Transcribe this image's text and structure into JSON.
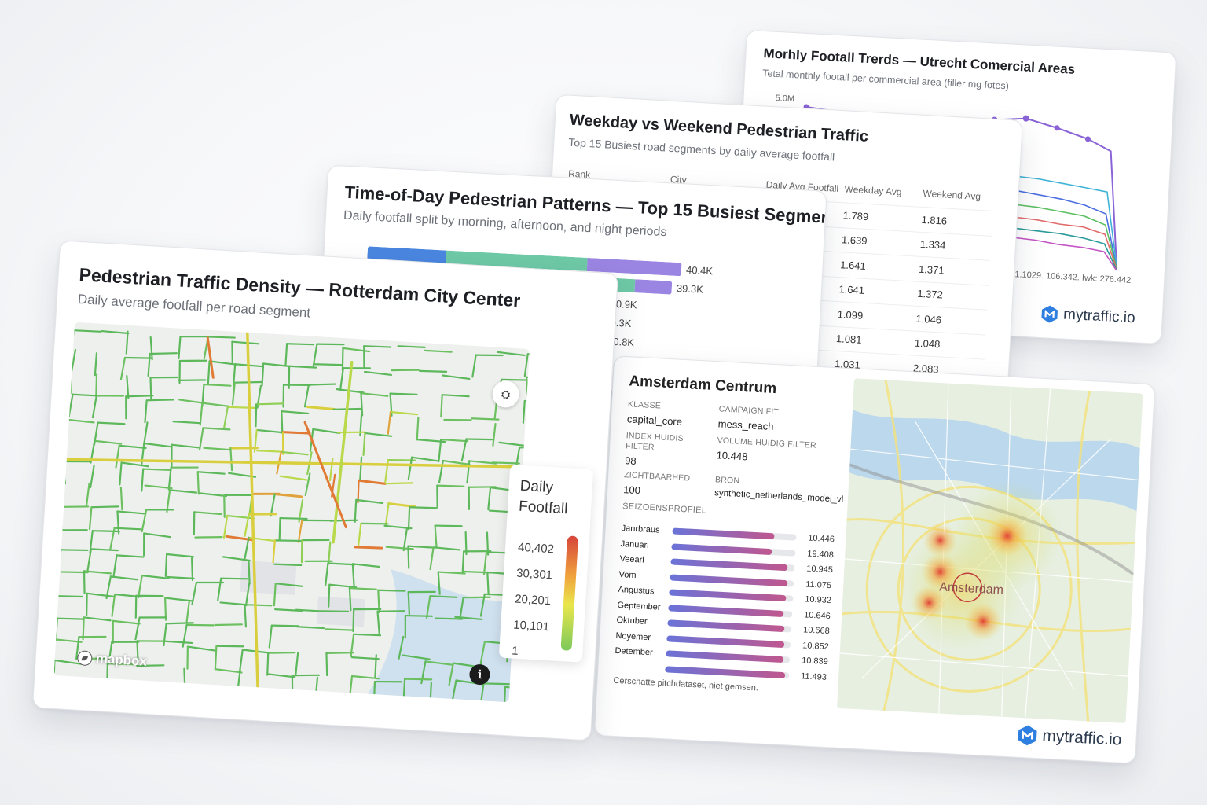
{
  "brand": {
    "name": "mytraffic.io",
    "accent": "#2f7fe0"
  },
  "trends": {
    "title": "Morhly Footall Trerds — Utrecht Comercial Areas",
    "subtitle": "Tetal monthly footall per commercial area (filler mg fotes)",
    "ytick": "5.0M",
    "footer": "21.1029. 106.342. Iwk: 276.442"
  },
  "weekday": {
    "title": "Weekday vs Weekend Pedestrian Traffic",
    "subtitle": "Top 15 Busiest road segments by daily average footfall",
    "headers": {
      "rank": "Rank",
      "city": "City",
      "daily": "Daily Avg Footfall",
      "weekday": "Weekday Avg",
      "weekend": "Weekend Avg"
    },
    "rows": [
      {
        "weekday": "1.789",
        "weekend": "1.816"
      },
      {
        "weekday": "1.639",
        "weekend": "1.334"
      },
      {
        "weekday": "1.641",
        "weekend": "1.371"
      },
      {
        "weekday": "1.641",
        "weekend": "1.372"
      },
      {
        "weekday": "1.099",
        "weekend": "1.046"
      },
      {
        "weekday": "1.081",
        "weekend": "1.048"
      },
      {
        "weekday": "1.031",
        "weekend": "2.083"
      }
    ]
  },
  "tod": {
    "title": "Time-of-Day Pedestrian Patterns — Top 15 Busiest Segments",
    "subtitle": "Daily footfall split by morning, afternoon, and night periods",
    "colors": {
      "morning": "#4a86e0",
      "afternoon": "#6ec9a6",
      "night": "#9a86e2"
    },
    "bars": [
      {
        "label": "40.4K",
        "total": 40.4,
        "m": 0.25,
        "a": 0.45,
        "n": 0.3
      },
      {
        "label": "39.3K",
        "total": 39.3,
        "m": 0.22,
        "a": 0.66,
        "n": 0.12
      },
      {
        "label": "30.9K",
        "total": 30.9,
        "m": 0.2,
        "a": 0.55,
        "n": 0.25
      },
      {
        "label": "30.3K",
        "total": 30.3,
        "m": 0.24,
        "a": 0.5,
        "n": 0.26
      },
      {
        "label": "30.8K",
        "total": 30.8,
        "m": 0.24,
        "a": 0.46,
        "n": 0.3
      }
    ]
  },
  "rotterdam": {
    "title": "Pedestrian Traffic Density — Rotterdam City Center",
    "subtitle": "Daily average footfall per road segment",
    "legend": {
      "title_line1": "Daily",
      "title_line2": "Footfall",
      "ticks": [
        "40,402",
        "30,301",
        "20,201",
        "10,101",
        "1"
      ]
    },
    "mapbox": "mapbox",
    "info": "i"
  },
  "amsterdam": {
    "title": "Amsterdam Centrum",
    "klasse_k": "KLASSE",
    "klasse_v": "capital_core",
    "campaign_k": "CAMPAIGN FIT",
    "campaign_v": "mess_reach",
    "index_k": "INDEX HUIDIS FILTER",
    "index_v": "98",
    "volume_k": "VOLUME HUIDIG FILTER",
    "volume_v": "10.448",
    "zicht_k": "ZICHTBAARHED",
    "zicht_v": "100",
    "bron_k": "BRON",
    "bron_v": "synthetic_netherlands_model_vl",
    "season_label": "SEIZOENSPROFIEL",
    "months": [
      {
        "name": "Janrbraus",
        "value": "10.446",
        "pct": 0.82
      },
      {
        "name": "Januari",
        "value": "19.408",
        "pct": 0.81
      },
      {
        "name": "Veearl",
        "value": "10.945",
        "pct": 0.94
      },
      {
        "name": "Vom",
        "value": "11.075",
        "pct": 0.95
      },
      {
        "name": "Angustus",
        "value": "10.932",
        "pct": 0.94
      },
      {
        "name": "Geptember",
        "value": "10.646",
        "pct": 0.93
      },
      {
        "name": "Oktuber",
        "value": "10.668",
        "pct": 0.94
      },
      {
        "name": "Noyemer",
        "value": "10.852",
        "pct": 0.95
      },
      {
        "name": "Detember",
        "value": "10.839",
        "pct": 0.95
      },
      {
        "name": "",
        "value": "11.493",
        "pct": 0.97
      }
    ],
    "footnote": "Cerschatte pitchdataset, niet gemsen.",
    "map_label": "Amsterdam"
  }
}
